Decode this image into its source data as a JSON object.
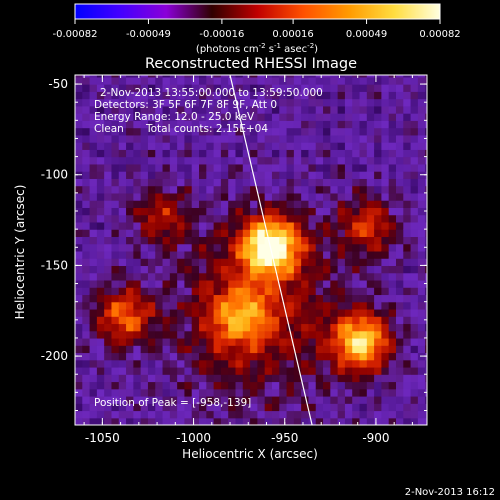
{
  "colorbar": {
    "ticks": [
      "-0.00082",
      "-0.00049",
      "-0.00016",
      "0.00016",
      "0.00049",
      "0.00082"
    ],
    "tick_values": [
      -0.00082,
      -0.00049,
      -0.00016,
      0.00016,
      0.00049,
      0.00082
    ],
    "unit_main": "(photons cm",
    "unit_sup1": "-2",
    "unit_mid": " s",
    "unit_sup2": "-1",
    "unit_mid2": " asec",
    "unit_sup3": "-2",
    "unit_end": ")"
  },
  "annotations": {
    "time": "2-Nov-2013 13:55:00.000 to 13:59:50.000",
    "detectors": "Detectors: 3F 5F 6F 7F 8F 9F, Att 0",
    "energy": "Energy Range: 12.0 - 25.0 keV",
    "clean": "Clean",
    "counts": "Total counts: 2.15E+04",
    "peak": "Position of Peak = [-958,-139]"
  },
  "footer": {
    "timestamp": "2-Nov-2013 16:12"
  },
  "chart_data": {
    "type": "heatmap",
    "title": "Reconstructed RHESSI Image",
    "xlabel": "Heliocentric X (arcsec)",
    "ylabel": "Heliocentric Y (arcsec)",
    "xlim": [
      -1065,
      -872
    ],
    "ylim": [
      -238,
      -45
    ],
    "xticks": [
      -1050,
      -1000,
      -950,
      -900
    ],
    "xtick_labels": [
      "-1050",
      "-1000",
      "-950",
      "-900"
    ],
    "yticks": [
      -50,
      -100,
      -150,
      -200
    ],
    "ytick_labels": [
      "-50",
      "-100",
      "-150",
      "-200"
    ],
    "colorbar_range": [
      -0.00082,
      0.00082
    ],
    "colormap": [
      "#0000ff",
      "#4400ff",
      "#8a00d8",
      "#300000",
      "#c00000",
      "#ff5000",
      "#ff9a00",
      "#ffdd40",
      "#ffffe0"
    ],
    "peak": {
      "x": -958,
      "y": -139
    },
    "sources": [
      {
        "x": -958,
        "y": -139,
        "peak": 1.0
      },
      {
        "x": -908,
        "y": -192,
        "peak": 0.85
      },
      {
        "x": -975,
        "y": -178,
        "peak": 0.5
      },
      {
        "x": -1038,
        "y": -178,
        "peak": 0.55
      },
      {
        "x": -905,
        "y": -128,
        "peak": 0.45
      },
      {
        "x": -1018,
        "y": -122,
        "peak": 0.35
      }
    ],
    "limb_line": [
      [
        -980,
        -45
      ],
      [
        -935,
        -238
      ]
    ],
    "grid": false
  }
}
